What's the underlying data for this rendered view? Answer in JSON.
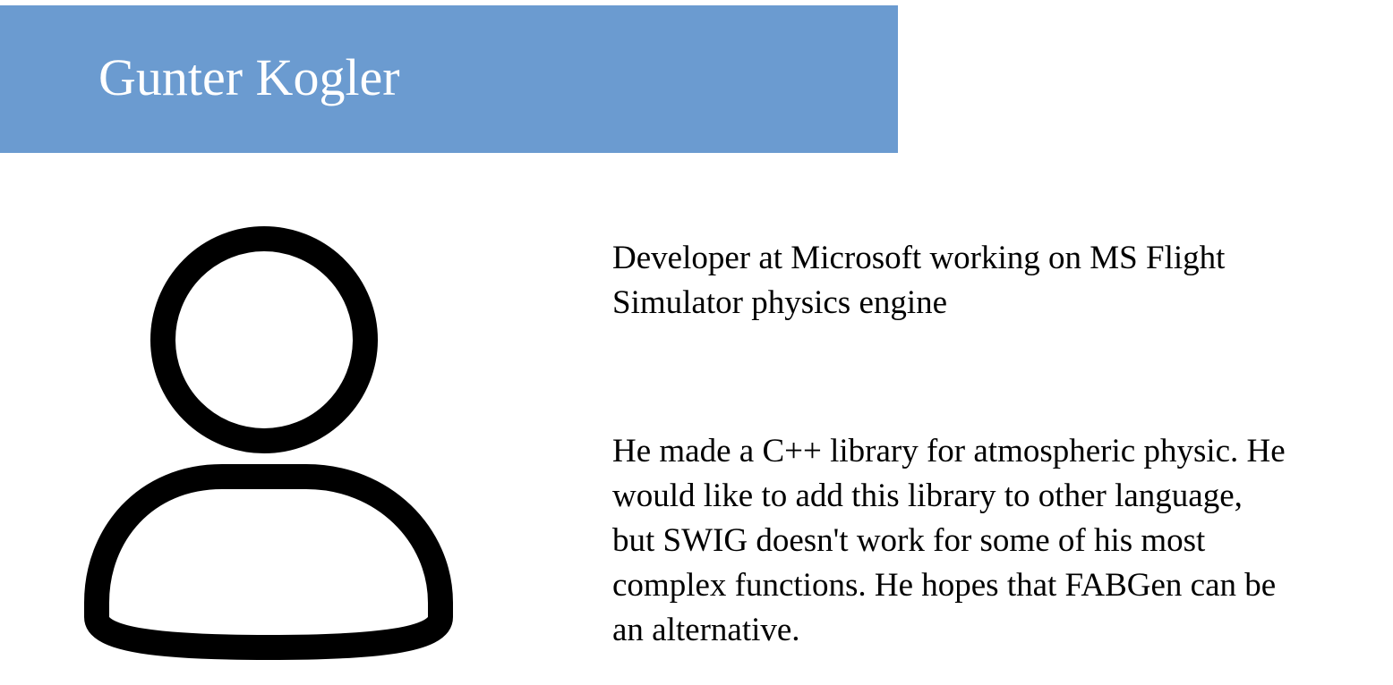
{
  "slide": {
    "title": "Gunter Kogler",
    "avatar_icon": "person-outline-icon",
    "role_text": "Developer at Microsoft working on MS Flight Simulator physics engine",
    "story_text": "He made a C++ library for atmospheric physic. He would like to add this library to other language, but SWIG doesn't work for some of his most complex functions. He hopes that FABGen can be an alternative.",
    "colors": {
      "banner": "#6b9bd0",
      "title": "#ffffff",
      "text": "#000000"
    }
  }
}
